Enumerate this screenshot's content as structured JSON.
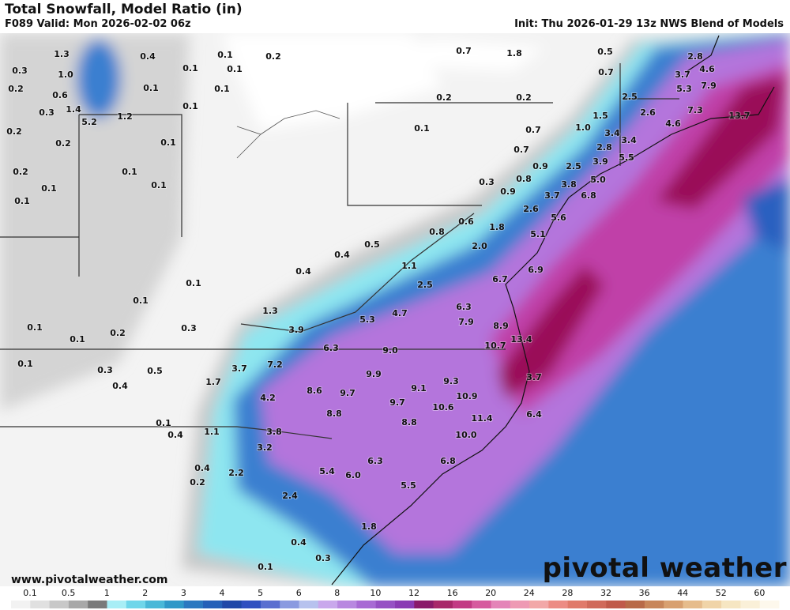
{
  "header": {
    "title": "Total Snowfall, Model Ratio (in)",
    "valid": "F089 Valid: Mon 2026-02-02 06z",
    "init": "Init: Thu 2026-01-29 13z NWS Blend of Models"
  },
  "map": {
    "labels": [
      "1.3",
      "0.4",
      "0.1",
      "0.2",
      "0.3",
      "1.0",
      "0.1",
      "0.1",
      "0.7",
      "1.8",
      "0.5",
      "2.8",
      "0.2",
      "0.6",
      "0.1",
      "0.1",
      "0.7",
      "3.7",
      "4.6",
      "0.3",
      "1.4",
      "5.2",
      "1.2",
      "0.1",
      "0.2",
      "0.2",
      "5.3",
      "7.9",
      "2.5",
      "0.2",
      "0.2",
      "0.1",
      "0.1",
      "0.7",
      "1.0",
      "1.5",
      "3.4",
      "2.6",
      "4.6",
      "7.3",
      "13.7",
      "2.8",
      "3.4",
      "5.5",
      "0.2",
      "0.1",
      "0.7",
      "0.9",
      "2.5",
      "3.9",
      "0.1",
      "0.1",
      "0.3",
      "0.8",
      "0.9",
      "3.8",
      "5.0",
      "0.1",
      "3.7",
      "6.8",
      "2.6",
      "5.6",
      "0.6",
      "1.8",
      "0.8",
      "5.1",
      "0.5",
      "0.4",
      "2.0",
      "0.4",
      "1.1",
      "6.9",
      "6.7",
      "0.1",
      "2.5",
      "0.1",
      "6.3",
      "1.3",
      "4.7",
      "5.3",
      "7.9",
      "8.9",
      "0.1",
      "0.3",
      "0.2",
      "3.9",
      "13.4",
      "0.1",
      "10.7",
      "6.3",
      "9.0",
      "0.1",
      "7.2",
      "3.7",
      "0.3",
      "0.5",
      "9.9",
      "9.3",
      "3.7",
      "0.4",
      "1.7",
      "8.6",
      "9.1",
      "9.7",
      "10.9",
      "4.2",
      "9.7",
      "10.6",
      "6.4",
      "11.4",
      "8.8",
      "8.8",
      "0.1",
      "0.4",
      "1.1",
      "3.8",
      "10.0",
      "3.2",
      "6.8",
      "6.3",
      "0.4",
      "5.4",
      "2.2",
      "6.0",
      "0.2",
      "5.5",
      "2.4",
      "1.8",
      "0.4",
      "0.3",
      "0.1"
    ]
  },
  "footer": {
    "url": "www.pivotalweather.com",
    "logo": "pivotal weather"
  },
  "legend": {
    "ticks": [
      "0.1",
      "0.5",
      "1",
      "2",
      "3",
      "4",
      "5",
      "6",
      "8",
      "10",
      "12",
      "16",
      "20",
      "24",
      "28",
      "32",
      "36",
      "44",
      "52",
      "60"
    ],
    "colors": [
      "#f2f2f2",
      "#e0e0e0",
      "#c8c8c8",
      "#a8a8a8",
      "#7a7a7a",
      "#a8eef6",
      "#6fd6ea",
      "#49b8d8",
      "#2f98c8",
      "#2a78c0",
      "#2460b8",
      "#1f48a8",
      "#3050c0",
      "#5a6fd0",
      "#8a9ae0",
      "#b7c2ee",
      "#c9a8ec",
      "#b888e0",
      "#a86ad4",
      "#9650c4",
      "#8a3ab4",
      "#8a1a6a",
      "#a8286a",
      "#c23a84",
      "#d65a9e",
      "#e484b8",
      "#ee9ab4",
      "#f2a8a8",
      "#ec8c84",
      "#e07a6a",
      "#d06a5a",
      "#c05a4a",
      "#b86a48",
      "#c8865a",
      "#d8a070",
      "#e6bc8c",
      "#f0d4a8",
      "#f6e6c2",
      "#faf0d8",
      "#fdf8ec"
    ]
  }
}
